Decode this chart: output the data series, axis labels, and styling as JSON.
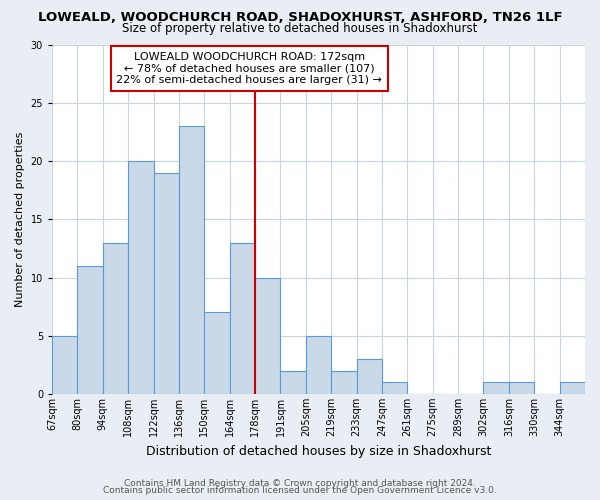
{
  "title": "LOWEALD, WOODCHURCH ROAD, SHADOXHURST, ASHFORD, TN26 1LF",
  "subtitle": "Size of property relative to detached houses in Shadoxhurst",
  "xlabel": "Distribution of detached houses by size in Shadoxhurst",
  "ylabel": "Number of detached properties",
  "bin_labels": [
    "67sqm",
    "80sqm",
    "94sqm",
    "108sqm",
    "122sqm",
    "136sqm",
    "150sqm",
    "164sqm",
    "178sqm",
    "191sqm",
    "205sqm",
    "219sqm",
    "233sqm",
    "247sqm",
    "261sqm",
    "275sqm",
    "289sqm",
    "302sqm",
    "316sqm",
    "330sqm",
    "344sqm"
  ],
  "bar_heights": [
    5,
    11,
    13,
    20,
    19,
    23,
    7,
    13,
    10,
    2,
    5,
    2,
    3,
    1,
    0,
    0,
    0,
    1,
    1,
    0,
    1
  ],
  "bar_color": "#c9d9e8",
  "bar_edge_color": "#5b9bd5",
  "bar_edge_width": 0.8,
  "marker_label_line1": "LOWEALD WOODCHURCH ROAD: 172sqm",
  "marker_label_line2": "← 78% of detached houses are smaller (107)",
  "marker_label_line3": "22% of semi-detached houses are larger (31) →",
  "marker_color": "#cc0000",
  "ylim": [
    0,
    30
  ],
  "yticks": [
    0,
    5,
    10,
    15,
    20,
    25,
    30
  ],
  "background_color": "#e8eef4",
  "plot_background": "#ffffff",
  "grid_color": "#c8d4e0",
  "footnote1": "Contains HM Land Registry data © Crown copyright and database right 2024.",
  "footnote2": "Contains public sector information licensed under the Open Government Licence v3.0.",
  "title_fontsize": 9.5,
  "subtitle_fontsize": 8.5,
  "xlabel_fontsize": 9,
  "ylabel_fontsize": 8,
  "tick_fontsize": 7,
  "annot_fontsize": 8,
  "footnote_fontsize": 6.5
}
